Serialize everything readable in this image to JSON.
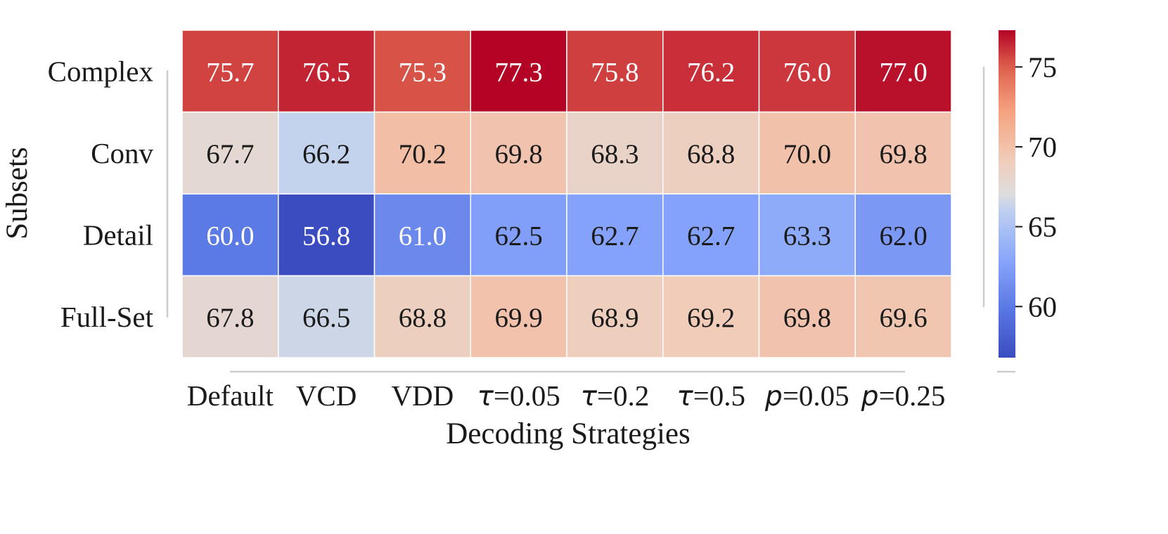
{
  "chart_data": {
    "type": "heatmap",
    "xlabel": "Decoding Strategies",
    "ylabel": "Subsets",
    "x_categories": [
      {
        "sym": "",
        "sym_italic": false,
        "text": "Default"
      },
      {
        "sym": "",
        "sym_italic": false,
        "text": "VCD"
      },
      {
        "sym": "",
        "sym_italic": false,
        "text": "VDD"
      },
      {
        "sym": "τ",
        "sym_italic": true,
        "text": "=0.05"
      },
      {
        "sym": "τ",
        "sym_italic": true,
        "text": "=0.2"
      },
      {
        "sym": "τ",
        "sym_italic": true,
        "text": "=0.5"
      },
      {
        "sym": "p",
        "sym_italic": true,
        "text": "=0.05"
      },
      {
        "sym": "p",
        "sym_italic": true,
        "text": "=0.25"
      }
    ],
    "y_categories": [
      "Complex",
      "Conv",
      "Detail",
      "Full-Set"
    ],
    "values": [
      [
        75.7,
        76.5,
        75.3,
        77.3,
        75.8,
        76.2,
        76.0,
        77.0
      ],
      [
        67.7,
        66.2,
        70.2,
        69.8,
        68.3,
        68.8,
        70.0,
        69.8
      ],
      [
        60.0,
        56.8,
        61.0,
        62.5,
        62.7,
        62.7,
        63.3,
        62.0
      ],
      [
        67.8,
        66.5,
        68.8,
        69.9,
        68.9,
        69.2,
        69.8,
        69.6
      ]
    ],
    "value_format": "0.0",
    "colormap": "coolwarm",
    "color_range": [
      56.8,
      77.3
    ],
    "colorbar_ticks": [
      60,
      65,
      70,
      75
    ],
    "grid": false,
    "cell_border_color": "#ffffff"
  }
}
